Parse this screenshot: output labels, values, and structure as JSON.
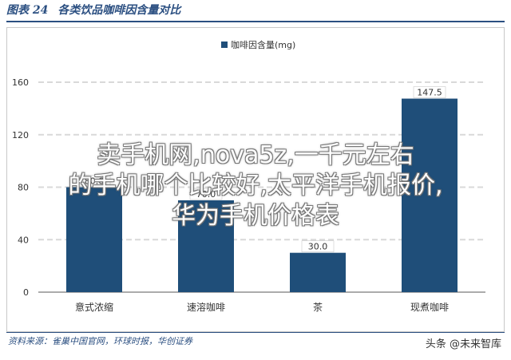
{
  "header": {
    "figure_label": "图表 24",
    "title": "各类饮品咖啡因含量对比"
  },
  "source": "资料来源：雀巢中国官网，环球时报，华创证券",
  "watermark": {
    "line1": "卖手机网,nova5z,一千元左右",
    "line2": "的手机哪个比较好,太平洋手机报价,",
    "line3": "华为手机价格表"
  },
  "credit": "头条 @未来智库",
  "colors": {
    "bar": "#1f4e79",
    "grid": "#d9d9d9",
    "axis": "#595959",
    "label_bg": "#ffffff"
  },
  "chart_data": {
    "type": "bar",
    "categories": [
      "意式浓缩",
      "速溶咖啡",
      "茶",
      "现煮咖啡"
    ],
    "series": [
      {
        "name": "咖啡因含量(mg)",
        "values": [
          80,
          70,
          30,
          147.5
        ]
      }
    ],
    "data_labels": [
      "80.0",
      "70.0",
      "30.0",
      "147.5"
    ],
    "ylim": [
      0,
      160
    ],
    "yticks": [
      0,
      40,
      80,
      120,
      160
    ],
    "grid": true,
    "legend": "top-center"
  }
}
